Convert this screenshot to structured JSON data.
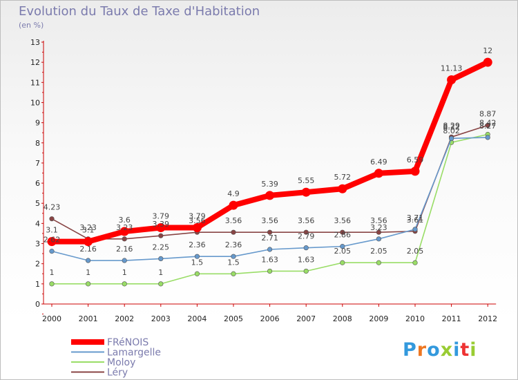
{
  "chart_data": {
    "type": "line",
    "title": "Evolution du Taux de Taxe d'Habitation",
    "subtitle": "(en %)",
    "x": [
      "2000",
      "2001",
      "2002",
      "2003",
      "2004",
      "2005",
      "2006",
      "2007",
      "2008",
      "2009",
      "2010",
      "2011",
      "2012"
    ],
    "ylim": [
      0,
      13
    ],
    "yticks": [
      0,
      1,
      2,
      3,
      4,
      5,
      6,
      7,
      8,
      9,
      10,
      11,
      12,
      13
    ],
    "grid": false,
    "legend_position": "bottom-left",
    "series": [
      {
        "name": "FRéNOIS",
        "color": "#ff0000",
        "values": [
          3.1,
          3.1,
          3.6,
          3.79,
          3.79,
          4.9,
          5.39,
          5.55,
          5.72,
          6.49,
          6.59,
          11.13,
          12
        ],
        "labels": [
          "3.1",
          "3.1",
          "3.6",
          "3.79",
          "3.79",
          "4.9",
          "5.39",
          "5.55",
          "5.72",
          "6.49",
          "6.59",
          "11.13",
          "12"
        ]
      },
      {
        "name": "Lamargelle",
        "color": "#6699cc",
        "values": [
          2.62,
          2.16,
          2.16,
          2.25,
          2.36,
          2.36,
          2.71,
          2.79,
          2.86,
          3.23,
          3.71,
          8.22,
          8.27
        ],
        "labels": [
          "2.62",
          "2.16",
          "2.16",
          "2.25",
          "2.36",
          "2.36",
          "2.71",
          "2.79",
          "2.86",
          "3.23",
          "3.71",
          "8.22",
          "8.27"
        ]
      },
      {
        "name": "Moloy",
        "color": "#99dd66",
        "values": [
          1,
          1,
          1,
          1,
          1.5,
          1.5,
          1.63,
          1.63,
          2.05,
          2.05,
          2.05,
          8.02,
          8.42
        ],
        "labels": [
          "1",
          "1",
          "1",
          "1",
          "1.5",
          "1.5",
          "1.63",
          "1.63",
          "2.05",
          "2.05",
          "2.05",
          "8.02",
          "8.42"
        ]
      },
      {
        "name": "Léry",
        "color": "#884444",
        "values": [
          4.23,
          3.23,
          3.23,
          3.39,
          3.56,
          3.56,
          3.56,
          3.56,
          3.56,
          3.56,
          3.61,
          8.29,
          8.87
        ],
        "labels": [
          "4.23",
          "3.23",
          "3.23",
          "3.39",
          "3.56",
          "3.56",
          "3.56",
          "3.56",
          "3.56",
          "3.56",
          "3.61",
          "8.29",
          "8.87"
        ]
      }
    ]
  },
  "logo": {
    "text": "Proxiti",
    "colors": [
      "#3399dd",
      "#ee7722",
      "#3399dd",
      "#99cc33",
      "#3399dd",
      "#ee3333",
      "#99cc33"
    ]
  }
}
